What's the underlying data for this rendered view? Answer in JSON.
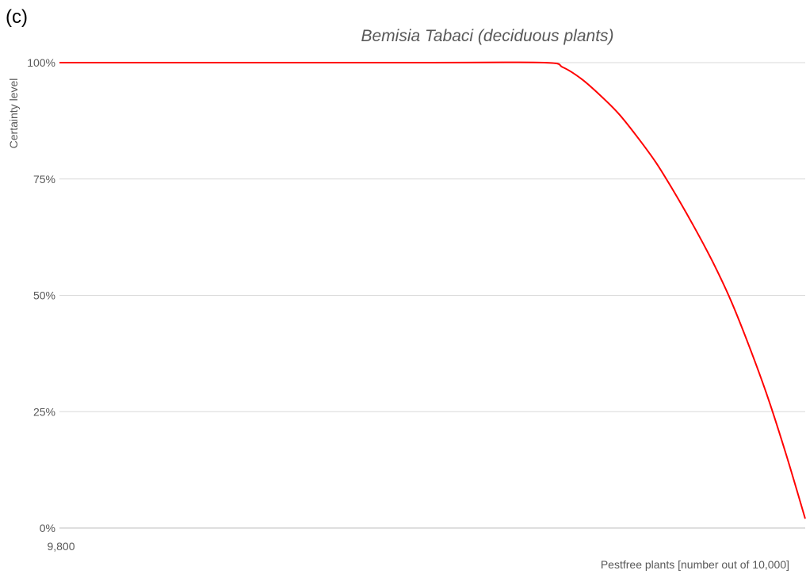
{
  "panel_label": "(c)",
  "chart_data": {
    "type": "line",
    "title": "Bemisia Tabaci (deciduous plants)",
    "xlabel": "Pestfree plants [number out of 10,000]",
    "ylabel": "Certainty level",
    "xlim": [
      9800,
      10000
    ],
    "ylim": [
      0,
      1
    ],
    "x_tick_labels": [
      "9,800"
    ],
    "y_ticks": [
      {
        "value": 0,
        "label": "0%"
      },
      {
        "value": 0.25,
        "label": "25%"
      },
      {
        "value": 0.5,
        "label": "50%"
      },
      {
        "value": 0.75,
        "label": "75%"
      },
      {
        "value": 1,
        "label": "100%"
      }
    ],
    "grid": true,
    "series": [
      {
        "color": "#ff0000",
        "x": [
          9800,
          9900,
          9930,
          9935,
          9940,
          9945,
          9950,
          9955,
          9960,
          9965,
          9970,
          9975,
          9980,
          9985,
          9990,
          9995,
          10000
        ],
        "y": [
          1.0,
          1.0,
          1.0,
          0.99,
          0.965,
          0.93,
          0.89,
          0.84,
          0.785,
          0.72,
          0.65,
          0.575,
          0.49,
          0.39,
          0.28,
          0.155,
          0.02
        ]
      }
    ]
  }
}
